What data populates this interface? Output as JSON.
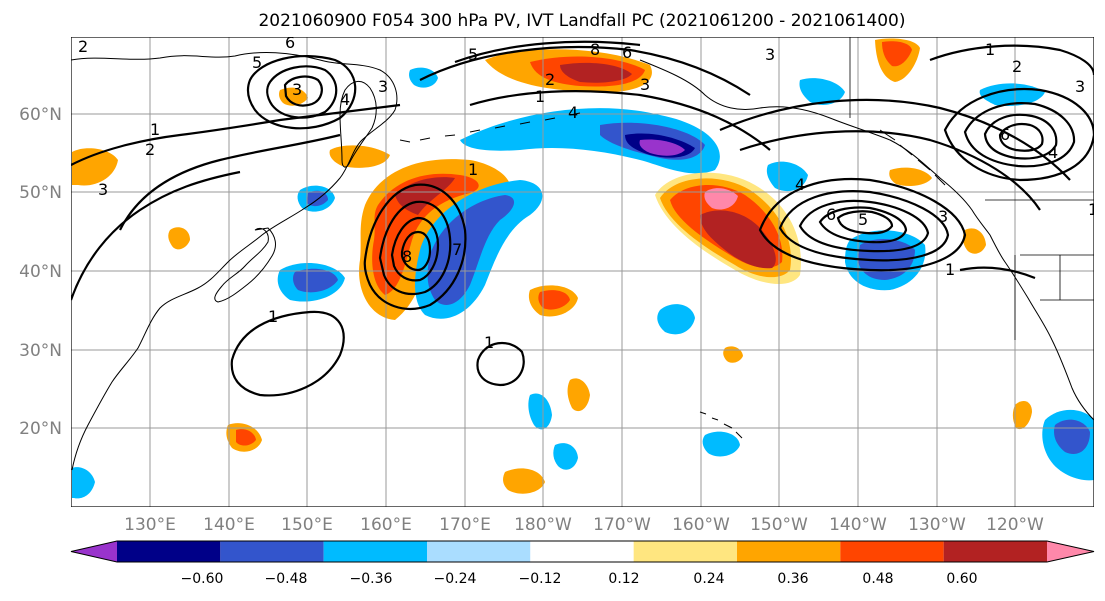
{
  "title": "2021060900 F054 300 hPa PV, IVT Landfall PC (2021061200 - 2021061400)",
  "lat_labels": [
    "60°N",
    "50°N",
    "40°N",
    "30°N",
    "20°N"
  ],
  "lon_labels": [
    "130°E",
    "140°E",
    "150°E",
    "160°E",
    "170°E",
    "180°W",
    "170°W",
    "160°W",
    "150°W",
    "140°W",
    "130°W",
    "120°W"
  ],
  "colorbar": {
    "tick_labels": [
      "−0.60",
      "−0.48",
      "−0.36",
      "−0.24",
      "−0.12",
      "0.12",
      "0.24",
      "0.36",
      "0.48",
      "0.60"
    ],
    "colors": [
      "#9933cc",
      "#000088",
      "#3355cc",
      "#00bbff",
      "#aaddff",
      "#ffffff",
      "#ffe680",
      "#ffa500",
      "#ff4500",
      "#b22222",
      "#ff88aa"
    ]
  },
  "contour_labels": [
    "2",
    "6",
    "5",
    "3",
    "4",
    "3",
    "1",
    "2",
    "3",
    "8",
    "6",
    "5",
    "3",
    "1",
    "2",
    "3",
    "4",
    "1",
    "8",
    "7",
    "1",
    "1",
    "4",
    "6",
    "5",
    "3",
    "1",
    "1",
    "2",
    "3",
    "4",
    "6",
    "1"
  ]
}
